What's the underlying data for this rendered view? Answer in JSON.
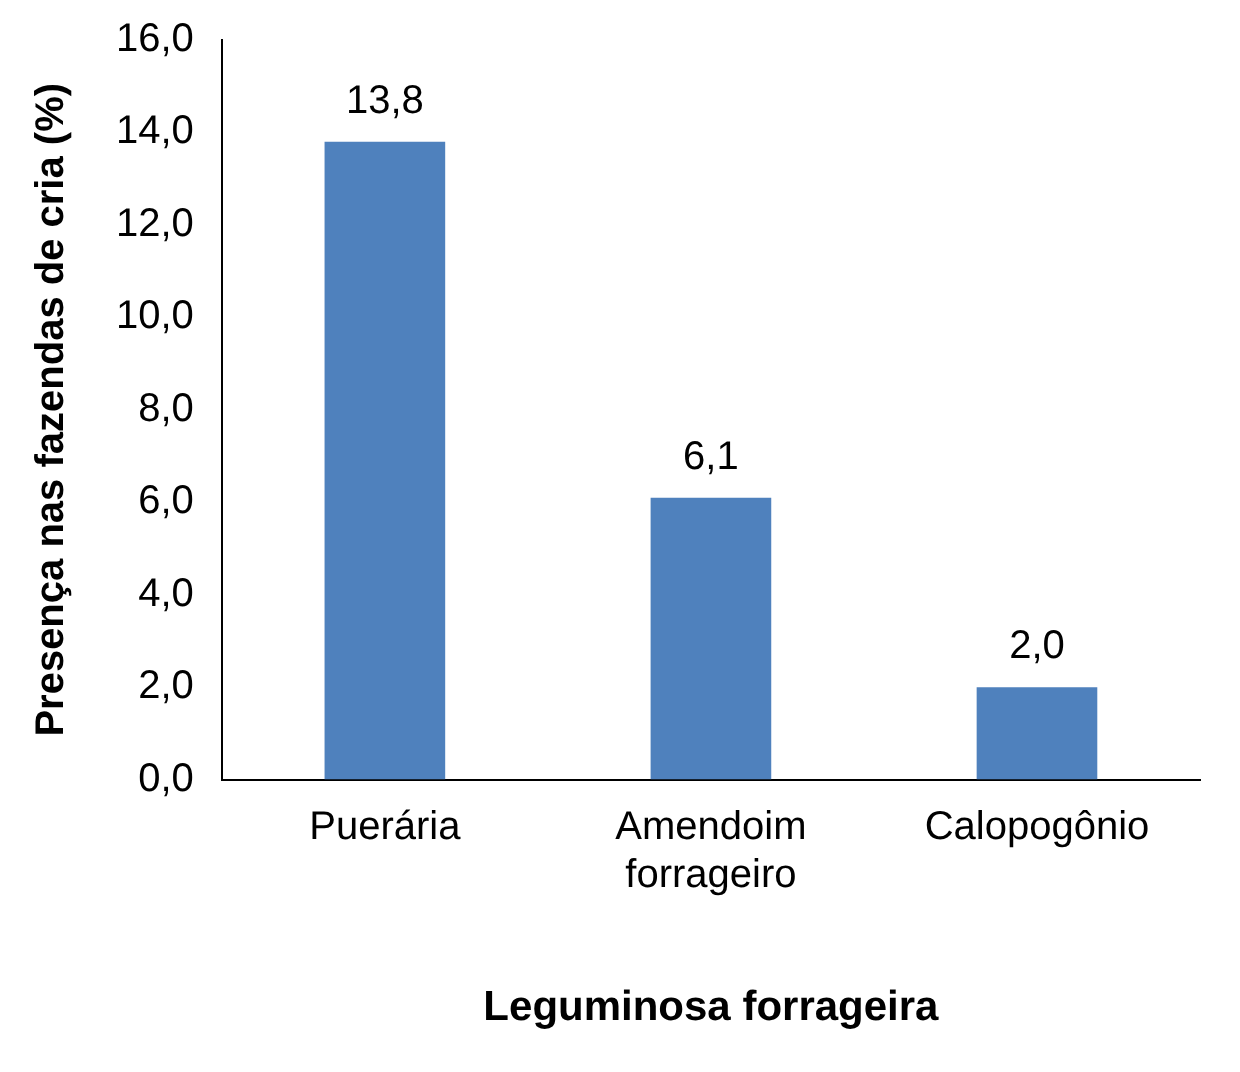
{
  "chart_data": {
    "type": "bar",
    "xlabel": "Leguminosa forrageira",
    "ylabel": "Presença nas fazendas de cria (%)",
    "categories": [
      "Puerária",
      "Amendoim forrageiro",
      "Calopogônio"
    ],
    "values": [
      13.8,
      6.1,
      2.0
    ],
    "color": "#4f81bd",
    "value_labels": [
      "13,8",
      "6,1",
      "2,0"
    ],
    "ylim": [
      0,
      16
    ],
    "yticks": [
      {
        "value": 0,
        "label": "0,0"
      },
      {
        "value": 2,
        "label": "2,0"
      },
      {
        "value": 4,
        "label": "4,0"
      },
      {
        "value": 6,
        "label": "6,0"
      },
      {
        "value": 8,
        "label": "8,0"
      },
      {
        "value": 10,
        "label": "10,0"
      },
      {
        "value": 12,
        "label": "12,0"
      },
      {
        "value": 14,
        "label": "14,0"
      },
      {
        "value": 16,
        "label": "16,0"
      }
    ],
    "grid": false,
    "legend": false
  }
}
